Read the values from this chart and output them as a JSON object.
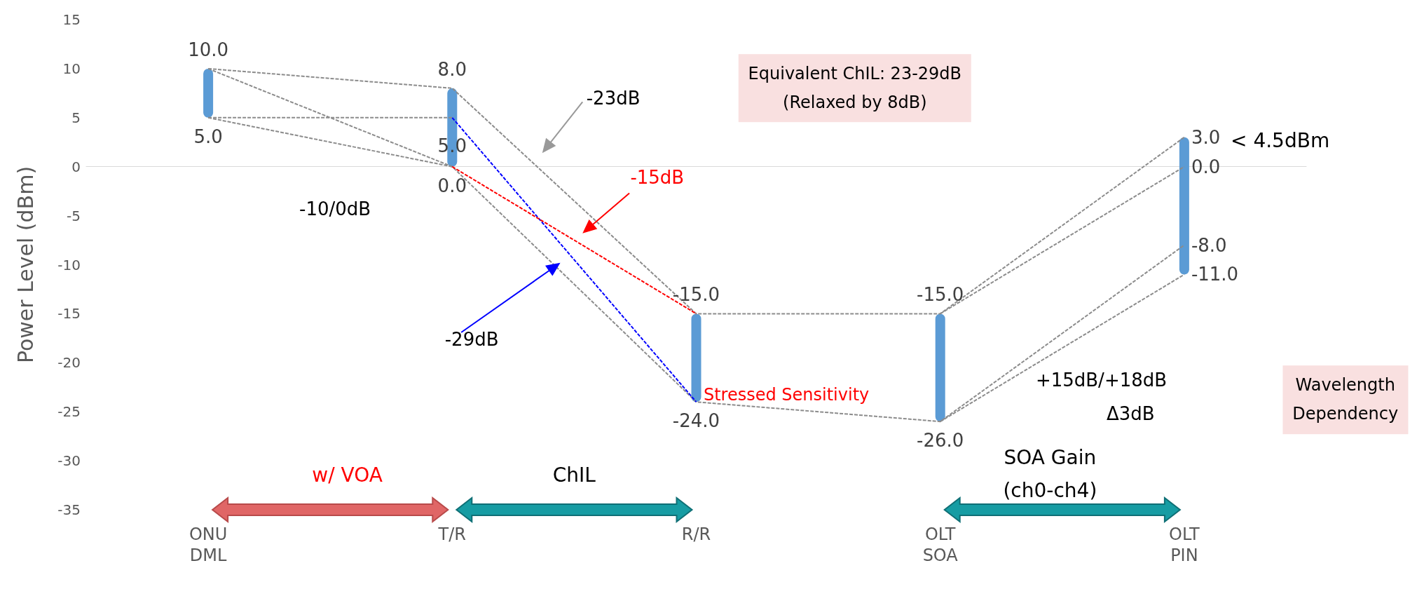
{
  "chart_data": {
    "type": "bar",
    "ylabel": "Power Level (dBm)",
    "categories": [
      "ONU\nDML",
      "T/R",
      "R/R",
      "OLT\nSOA",
      "OLT\nPIN"
    ],
    "ylim": [
      -35,
      15
    ],
    "yticks": [
      -35,
      -30,
      -25,
      -20,
      -15,
      -10,
      -5,
      0,
      5,
      10,
      15
    ],
    "marker": "none",
    "series": [
      {
        "color": "#5b9bd5",
        "base": [
          5,
          0,
          -24,
          -26,
          -11
        ],
        "values": [
          5,
          8,
          9,
          11,
          14
        ]
      },
      {
        "type": "line",
        "color": "#8c8c8c",
        "line_style": "dashed",
        "x": [
          "ONU\nDML",
          "T/R",
          "R/R",
          "OLT\nSOA",
          "OLT\nPIN"
        ],
        "values": [
          10,
          8,
          -15,
          -15,
          3
        ]
      },
      {
        "type": "line",
        "color": "#8c8c8c",
        "line_style": "dashed",
        "x": [
          "ONU\nDML",
          "T/R",
          "R/R",
          "OLT\nSOA",
          "OLT\nPIN"
        ],
        "values": [
          10,
          0,
          -24,
          -26,
          -8
        ]
      },
      {
        "type": "line",
        "color": "#8c8c8c",
        "line_style": "dashed",
        "x": [
          "ONU\nDML",
          "T/R"
        ],
        "values": [
          5,
          5
        ]
      },
      {
        "type": "line",
        "color": "#8c8c8c",
        "line_style": "dashed",
        "x": [
          "ONU\nDML",
          "T/R"
        ],
        "values": [
          5,
          0
        ]
      },
      {
        "type": "line",
        "color": "#8c8c8c",
        "line_style": "dashed",
        "x": [
          "OLT\nSOA",
          "OLT\nPIN"
        ],
        "values": [
          -15,
          0
        ]
      },
      {
        "type": "line",
        "color": "#8c8c8c",
        "line_style": "dashed",
        "x": [
          "OLT\nSOA",
          "OLT\nPIN"
        ],
        "values": [
          -26,
          -11
        ]
      },
      {
        "type": "line",
        "color": "#0000ff",
        "line_style": "dashed",
        "x": [
          "T/R",
          "R/R"
        ],
        "values": [
          5,
          -24
        ]
      },
      {
        "type": "line",
        "color": "#ff0000",
        "line_style": "dashed",
        "x": [
          "T/R",
          "R/R"
        ],
        "values": [
          0,
          -15
        ]
      }
    ],
    "annotations": [
      "-10/0dB",
      "-23dB",
      "-15dB",
      "-29dB",
      "Equivalent ChIL: 23-29dB\n(Relaxed by 8dB)",
      "< 4.5dBm",
      "Stressed Sensitivity",
      "+15dB/+18dB",
      "Δ3dB",
      "Wavelength\nDependency",
      "w/ VOA",
      "ChIL",
      "SOA Gain\n(ch0-ch4)",
      {
        "text": "10.0",
        "x": "ONU\nDML",
        "y": 10
      },
      {
        "text": "5.0",
        "x": "ONU\nDML",
        "y": 5
      },
      {
        "text": "8.0",
        "x": "T/R",
        "y": 8
      },
      {
        "text": "5.0",
        "x": "T/R",
        "y": 5
      },
      {
        "text": "0.0",
        "x": "T/R",
        "y": 0
      },
      {
        "text": "-15.0",
        "x": "R/R",
        "y": -15
      },
      {
        "text": "-24.0",
        "x": "R/R",
        "y": -24
      },
      {
        "text": "-15.0",
        "x": "OLT\nSOA",
        "y": -15
      },
      {
        "text": "-26.0",
        "x": "OLT\nSOA",
        "y": -26
      },
      {
        "text": "3.0",
        "x": "OLT\nPIN",
        "y": 3
      },
      {
        "text": "0.0",
        "x": "OLT\nPIN",
        "y": 0
      },
      {
        "text": "-8.0",
        "x": "OLT\nPIN",
        "y": -8
      },
      {
        "text": "-11.0",
        "x": "OLT\nPIN",
        "y": -11
      }
    ]
  }
}
